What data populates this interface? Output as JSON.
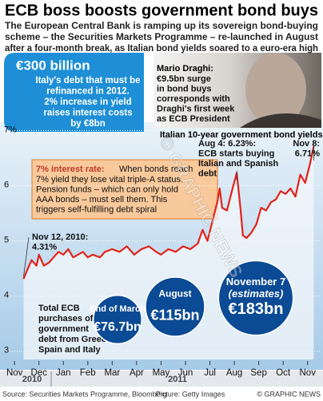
{
  "title": "ECB boss boosts government bond buys",
  "subtitle": [
    "The European Central Bank is ramping up its sovereign bond-buying",
    "scheme – the Securities Markets Programme – re-launched in August",
    "after a four-month break, as Italian bond yields soared to a euro-era high"
  ],
  "info_box": {
    "heading": "€300 billion",
    "lines": [
      "Italy's debt that must be",
      "refinanced in 2012.",
      "2% increase in yield",
      "raises interest costs",
      "by €8bn"
    ]
  },
  "photo_caption": {
    "heading": "Mario Draghi:",
    "lines": [
      "€9.5bn surge",
      "in bond buys",
      "corresponds with",
      "Draghi's first week",
      "as ECB President"
    ]
  },
  "chart_data": {
    "type": "line",
    "title": "Italian 10-year government bond yields",
    "x": [
      0.37,
      0.5,
      0.7,
      0.9,
      1.0,
      1.2,
      1.4,
      1.6,
      1.8,
      2.0,
      2.2,
      2.4,
      2.6,
      2.8,
      3.0,
      3.2,
      3.5,
      3.7,
      4.0,
      4.3,
      4.6,
      4.9,
      5.2,
      5.5,
      5.8,
      6.0,
      6.3,
      6.6,
      6.9,
      7.2,
      7.5,
      7.7,
      7.9,
      8.1,
      8.3,
      8.4,
      8.5,
      8.7,
      8.9,
      9.1,
      9.25,
      9.35,
      9.5,
      9.7,
      9.9,
      10.1,
      10.3,
      10.5,
      10.7,
      10.9,
      11.1,
      11.3,
      11.5,
      11.7,
      11.9,
      12.1,
      12.25
    ],
    "series": [
      {
        "color": "#e2231a",
        "values": [
          4.31,
          4.45,
          4.65,
          4.55,
          4.75,
          4.55,
          4.6,
          4.7,
          4.8,
          4.75,
          4.85,
          4.7,
          4.75,
          4.8,
          4.7,
          4.75,
          4.7,
          4.8,
          4.85,
          4.8,
          4.9,
          4.75,
          4.85,
          4.9,
          4.8,
          4.75,
          4.85,
          4.8,
          4.9,
          4.85,
          4.95,
          5.2,
          5.0,
          5.35,
          5.7,
          5.95,
          5.6,
          5.55,
          5.9,
          6.23,
          5.6,
          5.1,
          5.05,
          5.15,
          5.3,
          5.6,
          5.55,
          5.7,
          5.75,
          5.9,
          5.85,
          5.95,
          5.8,
          6.2,
          6.05,
          6.4,
          6.71
        ]
      }
    ],
    "xlim": [
      -0.3,
      12.5
    ],
    "xticks": [
      {
        "value": 0,
        "label": "Nov"
      },
      {
        "value": 1,
        "label": "Dec"
      },
      {
        "value": 2,
        "label": "Jan"
      },
      {
        "value": 3,
        "label": "Feb"
      },
      {
        "value": 4,
        "label": "Mar"
      },
      {
        "value": 5,
        "label": "Apr"
      },
      {
        "value": 6,
        "label": "May"
      },
      {
        "value": 7,
        "label": "Jun"
      },
      {
        "value": 8,
        "label": "Jul"
      },
      {
        "value": 9,
        "label": "Aug"
      },
      {
        "value": 10,
        "label": "Sep"
      },
      {
        "value": 11,
        "label": "Oct"
      },
      {
        "value": 12,
        "label": "Nov"
      }
    ],
    "years": [
      "2010",
      "2011"
    ],
    "ylim": [
      2.85,
      7.15
    ],
    "yticks": [
      3,
      4,
      5,
      6,
      {
        "value": 7,
        "label": "7%"
      }
    ],
    "grid": true,
    "annotations": [
      {
        "lines": [
          "Nov 12, 2010:",
          "4.31%"
        ],
        "point": 0
      },
      {
        "lines": [
          "Aug 4: 6.23%:",
          "ECB starts buying",
          "Italian and Spanish",
          "debt"
        ],
        "point": 39
      },
      {
        "lines": [
          "Nov 8:",
          "6.71%"
        ],
        "point": 56
      }
    ],
    "rate_box": {
      "heading": "7% interest rate:",
      "lines": [
        "When bonds reach",
        "7% yield they lose vital triple-A status.",
        "Pension funds – which can only hold",
        "AAA bonds – must sell them. This",
        "triggers self-fulfilling debt spiral"
      ]
    },
    "bubbles": {
      "title": [
        "Total ECB",
        "purchases of",
        "government",
        "debt from Greece,",
        "Spain and Italy"
      ],
      "color": "#0b4a94",
      "items": [
        {
          "label": "End of March",
          "values": 76.7,
          "value_labels": "€76.7bn"
        },
        {
          "label": "August",
          "values": 115,
          "value_labels": "€115bn"
        },
        {
          "label": "November 7",
          "note": "(estimates)",
          "values": 183,
          "value_labels": "€183bn"
        }
      ]
    }
  },
  "watermark": "© GRAPHIC NEWS",
  "footer": {
    "source": "Source: Securities Markets Programme, Bloomberg",
    "picture": "Picture: Getty Images",
    "credit": "© GRAPHIC NEWS"
  }
}
